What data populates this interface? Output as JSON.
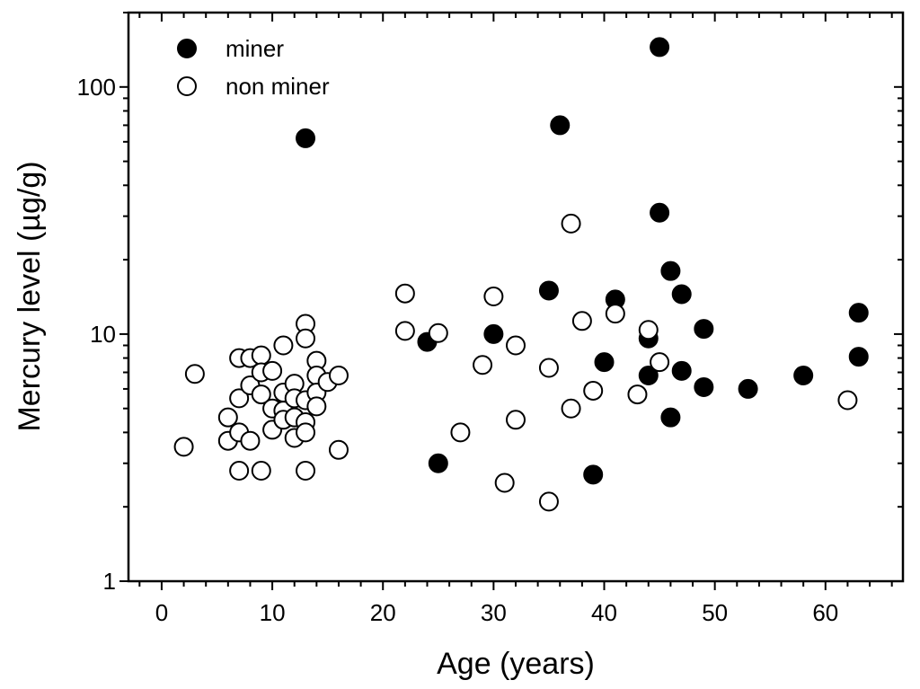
{
  "chart_data": {
    "type": "scatter",
    "title": "",
    "xlabel": "Age (years)",
    "ylabel": "Mercury level (µg/g)",
    "xlim": [
      -3,
      67
    ],
    "ylim": [
      1,
      200
    ],
    "yscale": "log",
    "x_ticks": [
      0,
      10,
      20,
      30,
      40,
      50,
      60
    ],
    "y_ticks": [
      1,
      10,
      100
    ],
    "legend_position": "top-left",
    "series": [
      {
        "name": "miner",
        "marker": "filled-circle",
        "color": "#000000",
        "points": [
          [
            13,
            62
          ],
          [
            24,
            9.3
          ],
          [
            25,
            3.0
          ],
          [
            30,
            10.0
          ],
          [
            35,
            15.0
          ],
          [
            36,
            70
          ],
          [
            39,
            2.7
          ],
          [
            40,
            7.7
          ],
          [
            41,
            13.8
          ],
          [
            44,
            9.6
          ],
          [
            44,
            6.8
          ],
          [
            45,
            145
          ],
          [
            45,
            31
          ],
          [
            46,
            18
          ],
          [
            46,
            4.6
          ],
          [
            47,
            14.5
          ],
          [
            47,
            7.1
          ],
          [
            49,
            10.5
          ],
          [
            49,
            6.1
          ],
          [
            53,
            6.0
          ],
          [
            58,
            6.8
          ],
          [
            63,
            12.2
          ],
          [
            63,
            8.1
          ]
        ]
      },
      {
        "name": "non miner",
        "marker": "open-circle",
        "color": "#000000",
        "points": [
          [
            2,
            3.5
          ],
          [
            3,
            6.9
          ],
          [
            6,
            4.6
          ],
          [
            6,
            3.7
          ],
          [
            7,
            8.0
          ],
          [
            7,
            5.5
          ],
          [
            7,
            4.0
          ],
          [
            7,
            2.8
          ],
          [
            8,
            8.0
          ],
          [
            8,
            6.2
          ],
          [
            8,
            3.7
          ],
          [
            9,
            8.2
          ],
          [
            9,
            7.0
          ],
          [
            9,
            5.7
          ],
          [
            9,
            2.8
          ],
          [
            10,
            7.1
          ],
          [
            10,
            5.0
          ],
          [
            10,
            4.1
          ],
          [
            11,
            9.0
          ],
          [
            11,
            5.8
          ],
          [
            11,
            4.9
          ],
          [
            11,
            4.5
          ],
          [
            12,
            6.3
          ],
          [
            12,
            5.5
          ],
          [
            12,
            4.6
          ],
          [
            12,
            3.8
          ],
          [
            13,
            11.0
          ],
          [
            13,
            9.6
          ],
          [
            13,
            5.4
          ],
          [
            13,
            4.4
          ],
          [
            13,
            4.0
          ],
          [
            13,
            2.8
          ],
          [
            14,
            7.8
          ],
          [
            14,
            6.8
          ],
          [
            14,
            5.8
          ],
          [
            14,
            5.1
          ],
          [
            15,
            6.4
          ],
          [
            16,
            6.8
          ],
          [
            16,
            3.4
          ],
          [
            22,
            14.6
          ],
          [
            22,
            10.3
          ],
          [
            25,
            10.1
          ],
          [
            27,
            4.0
          ],
          [
            29,
            7.5
          ],
          [
            30,
            14.2
          ],
          [
            31,
            2.5
          ],
          [
            32,
            9.0
          ],
          [
            32,
            4.5
          ],
          [
            35,
            7.3
          ],
          [
            35,
            2.1
          ],
          [
            37,
            28
          ],
          [
            37,
            5.0
          ],
          [
            38,
            11.3
          ],
          [
            39,
            5.9
          ],
          [
            41,
            12.1
          ],
          [
            43,
            5.7
          ],
          [
            44,
            10.4
          ],
          [
            45,
            7.7
          ],
          [
            62,
            5.4
          ]
        ]
      }
    ]
  }
}
